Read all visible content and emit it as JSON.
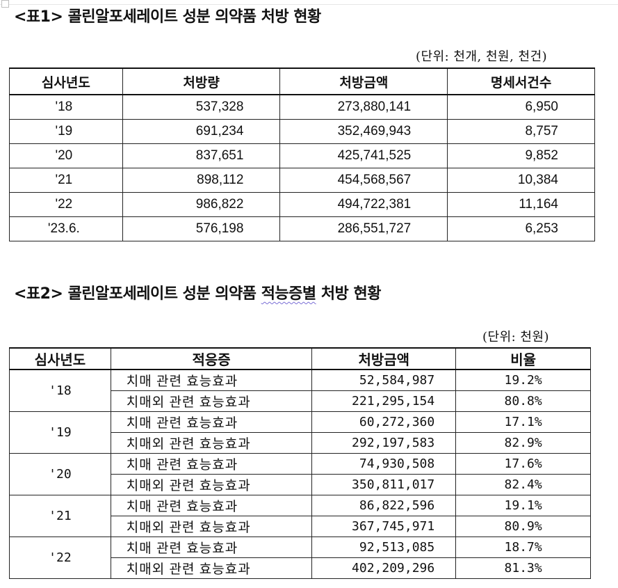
{
  "table1": {
    "title": "<표1> 콜린알포세레이트 성분 의약품 처방 현황",
    "unit": "(단위: 천개, 천원, 천건)",
    "headers": [
      "심사년도",
      "처방량",
      "처방금액",
      "명세서건수"
    ],
    "rows": [
      {
        "year": "'18",
        "volume": "537,328",
        "amount": "273,880,141",
        "count": "6,950"
      },
      {
        "year": "'19",
        "volume": "691,234",
        "amount": "352,469,943",
        "count": "8,757"
      },
      {
        "year": "'20",
        "volume": "837,651",
        "amount": "425,741,525",
        "count": "9,852"
      },
      {
        "year": "'21",
        "volume": "898,112",
        "amount": "454,568,567",
        "count": "10,384"
      },
      {
        "year": "'22",
        "volume": "986,822",
        "amount": "494,722,381",
        "count": "11,164"
      },
      {
        "year": "'23.6.",
        "volume": "576,198",
        "amount": "286,551,727",
        "count": "6,253"
      }
    ]
  },
  "table2": {
    "title_prefix": "<표2> 콜린알포세레이트 성분 의약품 ",
    "title_underlined": "적능증별",
    "title_suffix": " 처방 현황",
    "unit": "(단위: 천원)",
    "headers": [
      "심사년도",
      "적응증",
      "처방금액",
      "비율"
    ],
    "groups": [
      {
        "year": "'18",
        "rows": [
          {
            "indication": "치매 관련 효능효과",
            "amount": "52,584,987",
            "ratio": "19.2%"
          },
          {
            "indication": "치매외 관련 효능효과",
            "amount": "221,295,154",
            "ratio": "80.8%"
          }
        ]
      },
      {
        "year": "'19",
        "rows": [
          {
            "indication": "치매 관련 효능효과",
            "amount": "60,272,360",
            "ratio": "17.1%"
          },
          {
            "indication": "치매외 관련 효능효과",
            "amount": "292,197,583",
            "ratio": "82.9%"
          }
        ]
      },
      {
        "year": "'20",
        "rows": [
          {
            "indication": "치매 관련 효능효과",
            "amount": "74,930,508",
            "ratio": "17.6%"
          },
          {
            "indication": "치매외 관련 효능효과",
            "amount": "350,811,017",
            "ratio": "82.4%"
          }
        ]
      },
      {
        "year": "'21",
        "rows": [
          {
            "indication": "치매 관련 효능효과",
            "amount": "86,822,596",
            "ratio": "19.1%"
          },
          {
            "indication": "치매외 관련 효능효과",
            "amount": "367,745,971",
            "ratio": "80.9%"
          }
        ]
      },
      {
        "year": "'22",
        "rows": [
          {
            "indication": "치매 관련 효능효과",
            "amount": "92,513,085",
            "ratio": "18.7%"
          },
          {
            "indication": "치매외 관련 효능효과",
            "amount": "402,209,296",
            "ratio": "81.3%"
          }
        ]
      }
    ]
  }
}
